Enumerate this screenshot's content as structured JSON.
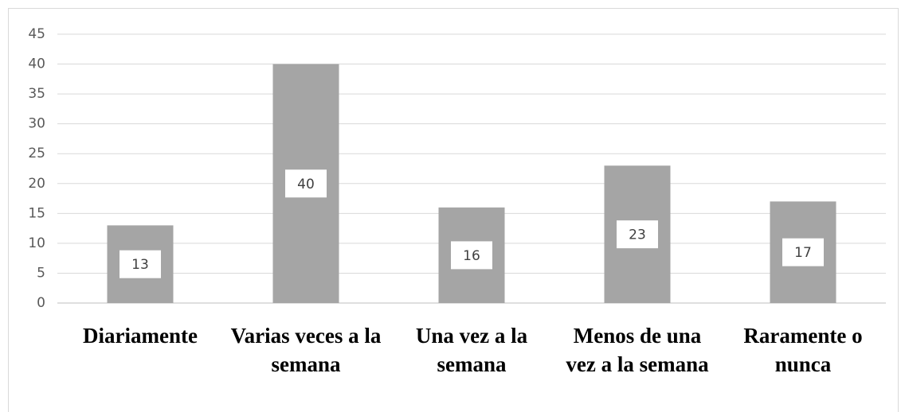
{
  "chart_data": {
    "type": "bar",
    "categories": [
      "Diariamente",
      "Varias veces a la semana",
      "Una vez a la semana",
      "Menos de una vez a la semana",
      "Raramente o nunca"
    ],
    "values": [
      13,
      40,
      16,
      23,
      17
    ],
    "color": "#a5a5a5",
    "ylim": [
      0,
      45
    ],
    "yticks": [
      0,
      5,
      10,
      15,
      20,
      25,
      30,
      35,
      40,
      45
    ],
    "grid": true
  }
}
